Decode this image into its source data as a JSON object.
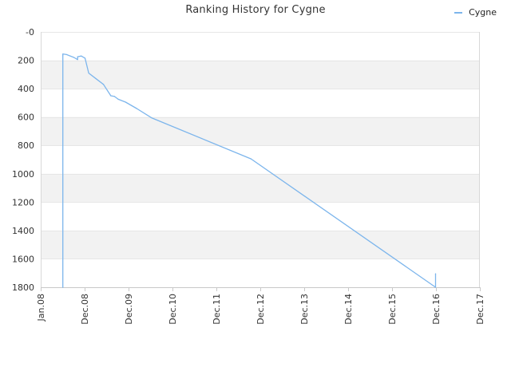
{
  "chart_data": {
    "type": "line",
    "title": "Ranking History for Cygne",
    "xlabel": "",
    "ylabel": "",
    "x_tick_labels": [
      "Jan.08",
      "Dec.08",
      "Dec.09",
      "Dec.10",
      "Dec.11",
      "Dec.12",
      "Dec.13",
      "Dec.14",
      "Dec.15",
      "Dec.16",
      "Dec.17"
    ],
    "y_tick_labels": [
      "-0",
      "200",
      "400",
      "600",
      "800",
      "1000",
      "1200",
      "1400",
      "1600",
      "1800"
    ],
    "ylim": [
      1800,
      0
    ],
    "y_inverted": true,
    "xlim": [
      "2008-01",
      "2017-12"
    ],
    "grid": "alternating horizontal bands",
    "legend_position": "top-right",
    "series": [
      {
        "name": "Cygne",
        "color": "#7cb5ec",
        "points": [
          {
            "x": "2008-07",
            "y": 1800
          },
          {
            "x": "2008-07",
            "y": 165
          },
          {
            "x": "2008-07",
            "y": 155
          },
          {
            "x": "2008-08",
            "y": 160
          },
          {
            "x": "2008-09",
            "y": 170
          },
          {
            "x": "2008-10",
            "y": 180
          },
          {
            "x": "2008-11",
            "y": 195
          },
          {
            "x": "2008-11",
            "y": 175
          },
          {
            "x": "2008-12",
            "y": 170
          },
          {
            "x": "2009-01",
            "y": 185
          },
          {
            "x": "2009-02",
            "y": 290
          },
          {
            "x": "2009-04",
            "y": 330
          },
          {
            "x": "2009-06",
            "y": 370
          },
          {
            "x": "2009-08",
            "y": 450
          },
          {
            "x": "2009-09",
            "y": 455
          },
          {
            "x": "2009-10",
            "y": 475
          },
          {
            "x": "2009-12",
            "y": 495
          },
          {
            "x": "2010-03",
            "y": 540
          },
          {
            "x": "2010-07",
            "y": 605
          },
          {
            "x": "2012-10",
            "y": 895
          },
          {
            "x": "2016-12",
            "y": 1800
          },
          {
            "x": "2016-12",
            "y": 1705
          }
        ]
      }
    ]
  }
}
